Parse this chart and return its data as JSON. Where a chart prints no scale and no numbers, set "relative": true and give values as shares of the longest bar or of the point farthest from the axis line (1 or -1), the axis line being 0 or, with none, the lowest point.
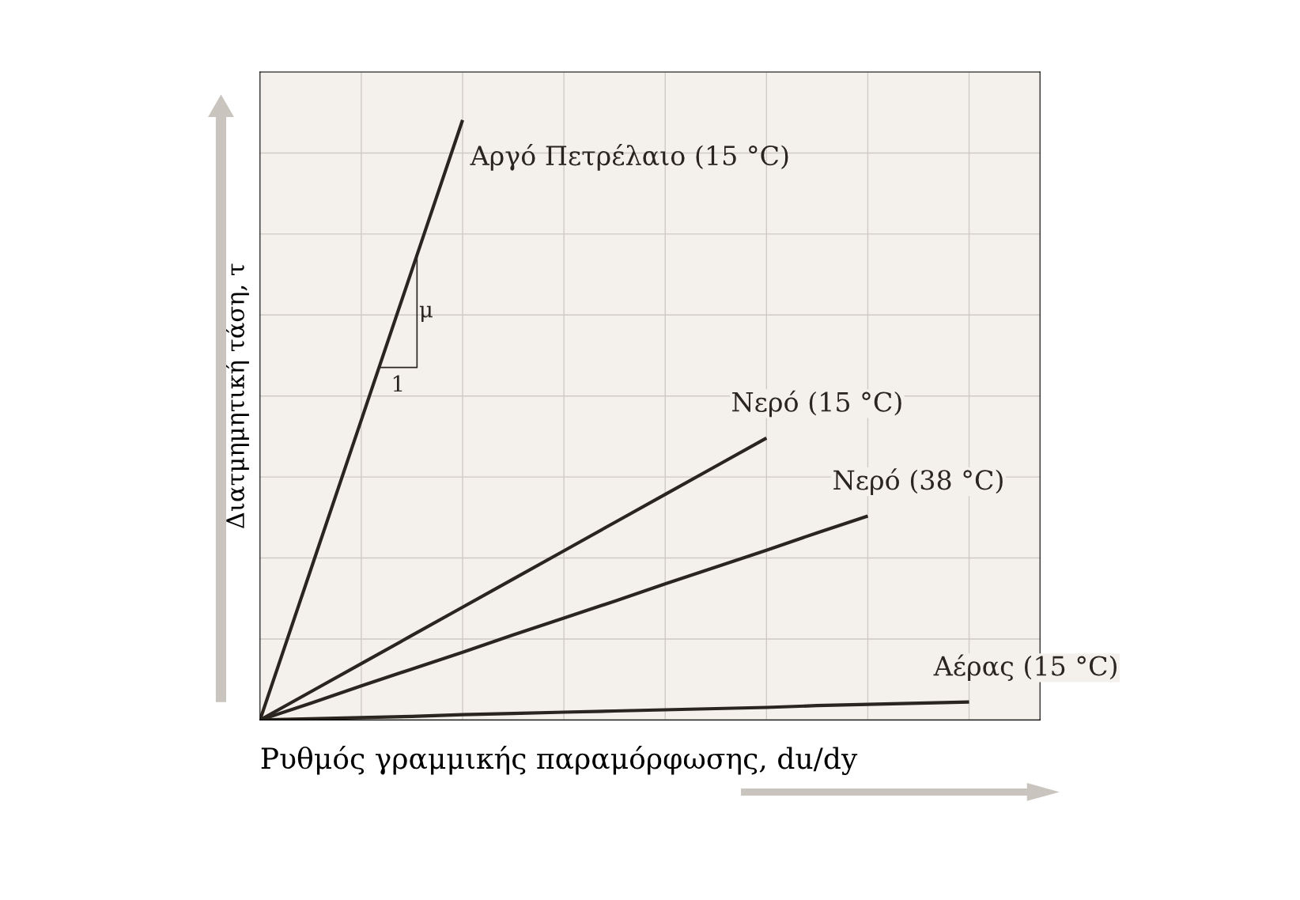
{
  "chart_data": {
    "type": "line",
    "relative": true,
    "xlabel": "Ρυθμός γραμμικής παραμόρφωσης, du/dy",
    "ylabel": "Διατμημητική τάση, τ",
    "categories": [
      null,
      null,
      null,
      null,
      null,
      null,
      null,
      null,
      null,
      null,
      null,
      null,
      null,
      null,
      null,
      null
    ],
    "grid": true,
    "marker": "none",
    "line_style": "solid",
    "series": [
      {
        "name": "Αργό Πετρέλαιο (15 °C)",
        "color": "#2b2520",
        "values": [
          0,
          0.25,
          0.5,
          0.75,
          1,
          null,
          null,
          null,
          null,
          null,
          null,
          null,
          null,
          null,
          null,
          null
        ]
      },
      {
        "name": "Νερό (15 °C)",
        "color": "#2b2520",
        "values": [
          0,
          0.047,
          0.094,
          0.141,
          0.188,
          0.235,
          0.282,
          0.329,
          0.376,
          0.423,
          0.47,
          null,
          null,
          null,
          null,
          null
        ]
      },
      {
        "name": "Νερό (38 °C)",
        "color": "#2b2520",
        "values": [
          0,
          0.028,
          0.057,
          0.085,
          0.113,
          0.142,
          0.17,
          0.198,
          0.227,
          0.255,
          0.283,
          0.312,
          0.34,
          null,
          null,
          null
        ]
      },
      {
        "name": "Αέρας (15 °C)",
        "color": "#2b2520",
        "values": [
          0,
          0.002,
          0.004,
          0.006,
          0.009,
          0.011,
          0.013,
          0.015,
          0.017,
          0.019,
          0.021,
          0.024,
          0.026,
          0.028,
          0.03,
          null
        ]
      }
    ],
    "annotations": [
      "μ",
      "1"
    ]
  }
}
